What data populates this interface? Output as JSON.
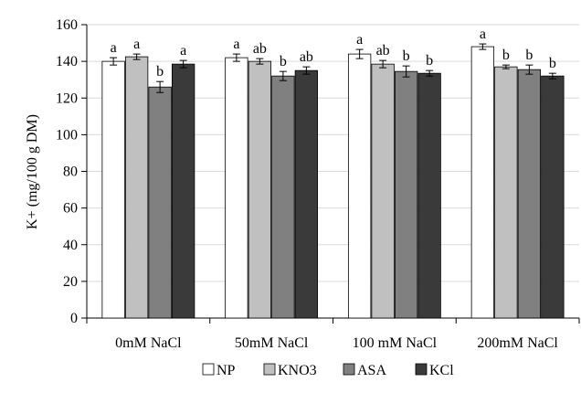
{
  "chart_data": {
    "type": "bar",
    "ylabel": "K+ (mg/100  g DM)",
    "ylim": [
      0,
      160
    ],
    "yticks": [
      0,
      20,
      40,
      60,
      80,
      100,
      120,
      140,
      160
    ],
    "categories": [
      "0mM NaCl",
      "50mM NaCl",
      "100 mM NaCl",
      "200mM NaCl"
    ],
    "legend_position": "bottom",
    "series": [
      {
        "name": "NP",
        "color": "#ffffff",
        "values": [
          140,
          142,
          144,
          148
        ],
        "errors": [
          2,
          2,
          2.5,
          1.5
        ],
        "labels": [
          "a",
          "a",
          "a",
          "a"
        ]
      },
      {
        "name": "KNO3",
        "color": "#c0c0c0",
        "values": [
          142.5,
          140,
          138.5,
          137
        ],
        "errors": [
          1.5,
          1.5,
          2,
          1
        ],
        "labels": [
          "a",
          "ab",
          "ab",
          "b"
        ]
      },
      {
        "name": "ASA",
        "color": "#808080",
        "values": [
          126,
          132,
          134.5,
          135.5
        ],
        "errors": [
          3,
          2.5,
          3,
          2.5
        ],
        "labels": [
          "b",
          "b",
          "b",
          "b"
        ]
      },
      {
        "name": "KCl",
        "color": "#3a3a3a",
        "values": [
          138.5,
          135,
          133.5,
          132
        ],
        "errors": [
          2,
          2,
          1.5,
          1.5
        ],
        "labels": [
          "a",
          "ab",
          "b",
          "b"
        ]
      }
    ]
  }
}
